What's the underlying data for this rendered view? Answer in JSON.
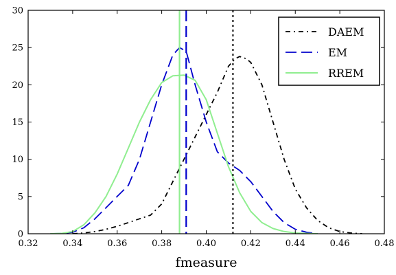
{
  "chart_data": {
    "type": "line",
    "title": "",
    "xlabel": "fmeasure",
    "ylabel": "",
    "xlim": [
      0.32,
      0.48
    ],
    "ylim": [
      0,
      30
    ],
    "xticks": [
      "0.32",
      "0.34",
      "0.36",
      "0.38",
      "0.40",
      "0.42",
      "0.44",
      "0.46",
      "0.48"
    ],
    "yticks": [
      "0",
      "5",
      "10",
      "15",
      "20",
      "25",
      "30"
    ],
    "grid": false,
    "legend_position": "top-right",
    "series": [
      {
        "name": "DAEM",
        "color": "#000000",
        "style": "dashdot",
        "x": [
          0.34,
          0.345,
          0.35,
          0.355,
          0.36,
          0.365,
          0.37,
          0.375,
          0.38,
          0.385,
          0.39,
          0.395,
          0.4,
          0.405,
          0.41,
          0.413,
          0.415,
          0.418,
          0.42,
          0.425,
          0.43,
          0.435,
          0.44,
          0.445,
          0.45,
          0.455,
          0.46,
          0.465,
          0.47
        ],
        "y": [
          0,
          0.1,
          0.3,
          0.6,
          1,
          1.5,
          2,
          2.5,
          4,
          7,
          10,
          13,
          16,
          19,
          22.5,
          23.5,
          23.8,
          23.5,
          23,
          20,
          15,
          10,
          6,
          3.5,
          1.8,
          0.8,
          0.3,
          0.1,
          0
        ]
      },
      {
        "name": "EM",
        "color": "#0000cc",
        "style": "dashed",
        "x": [
          0.33,
          0.335,
          0.34,
          0.345,
          0.35,
          0.355,
          0.36,
          0.365,
          0.37,
          0.375,
          0.38,
          0.385,
          0.388,
          0.391,
          0.395,
          0.4,
          0.405,
          0.41,
          0.415,
          0.42,
          0.425,
          0.43,
          0.435,
          0.44,
          0.445,
          0.45
        ],
        "y": [
          0,
          0.05,
          0.2,
          0.8,
          2,
          3.5,
          5,
          6.5,
          10,
          15,
          20,
          24,
          25,
          24.5,
          20,
          15,
          11,
          9.5,
          8.5,
          7,
          5,
          3,
          1.5,
          0.6,
          0.2,
          0
        ]
      },
      {
        "name": "RREM",
        "color": "#90ee90",
        "style": "solid",
        "x": [
          0.33,
          0.335,
          0.34,
          0.345,
          0.35,
          0.355,
          0.36,
          0.365,
          0.37,
          0.375,
          0.38,
          0.385,
          0.39,
          0.395,
          0.4,
          0.405,
          0.41,
          0.415,
          0.42,
          0.425,
          0.43,
          0.435,
          0.44,
          0.445,
          0.45
        ],
        "y": [
          0,
          0.05,
          0.3,
          1.2,
          2.8,
          5,
          8,
          11.5,
          15,
          18,
          20.3,
          21.2,
          21.3,
          20.6,
          18,
          13.5,
          9,
          5.5,
          3,
          1.5,
          0.7,
          0.3,
          0.1,
          0.05,
          0
        ]
      }
    ],
    "vlines": [
      {
        "series": "DAEM",
        "x": 0.412,
        "color": "#000000",
        "style": "dotted"
      },
      {
        "series": "EM",
        "x": 0.391,
        "color": "#0000cc",
        "style": "dashed"
      },
      {
        "series": "RREM",
        "x": 0.388,
        "color": "#90ee90",
        "style": "solid"
      }
    ]
  }
}
